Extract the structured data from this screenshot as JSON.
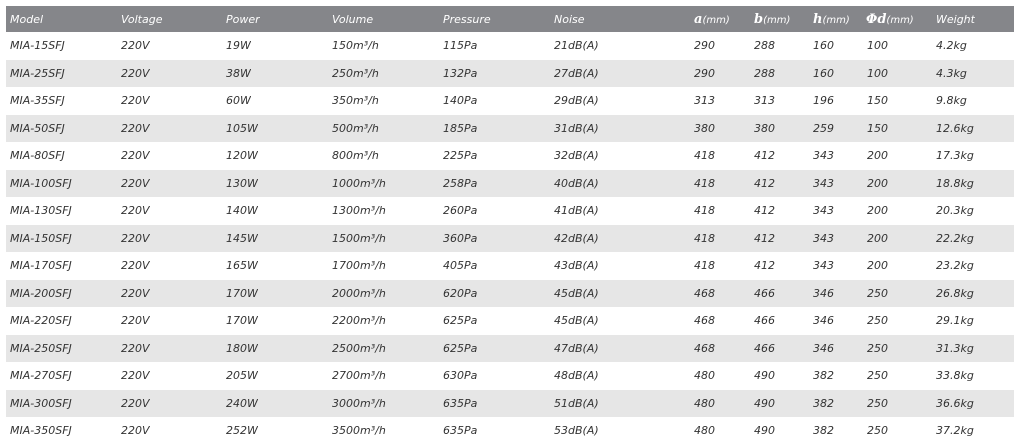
{
  "header": {
    "model": "Model",
    "voltage": "Voltage",
    "power": "Power",
    "volume": "Volume",
    "pressure": "Pressure",
    "noise": "Noise",
    "a_sym": "a",
    "a_unit": "(mm)",
    "b_sym": "b",
    "b_unit": "(mm)",
    "h_sym": "h",
    "h_unit": "(mm)",
    "d_sym": "Φd",
    "d_unit": "(mm)",
    "weight": "Weight"
  },
  "rows": [
    {
      "model": "MIA-15SFJ",
      "voltage": "220V",
      "power": "19W",
      "volume": "150m³/h",
      "pressure": "115Pa",
      "noise": "21dB(A)",
      "a": "290",
      "b": "288",
      "h": "160",
      "d": "100",
      "weight": "4.2kg"
    },
    {
      "model": "MIA-25SFJ",
      "voltage": "220V",
      "power": "38W",
      "volume": "250m³/h",
      "pressure": "132Pa",
      "noise": "27dB(A)",
      "a": "290",
      "b": "288",
      "h": "160",
      "d": "100",
      "weight": "4.3kg"
    },
    {
      "model": "MIA-35SFJ",
      "voltage": "220V",
      "power": "60W",
      "volume": "350m³/h",
      "pressure": "140Pa",
      "noise": "29dB(A)",
      "a": "313",
      "b": "313",
      "h": "196",
      "d": "150",
      "weight": "9.8kg"
    },
    {
      "model": "MIA-50SFJ",
      "voltage": "220V",
      "power": "105W",
      "volume": "500m³/h",
      "pressure": "185Pa",
      "noise": "31dB(A)",
      "a": "380",
      "b": "380",
      "h": "259",
      "d": "150",
      "weight": "12.6kg"
    },
    {
      "model": "MIA-80SFJ",
      "voltage": "220V",
      "power": "120W",
      "volume": "800m³/h",
      "pressure": "225Pa",
      "noise": "32dB(A)",
      "a": "418",
      "b": "412",
      "h": "343",
      "d": "200",
      "weight": "17.3kg"
    },
    {
      "model": "MIA-100SFJ",
      "voltage": "220V",
      "power": "130W",
      "volume": "1000m³/h",
      "pressure": "258Pa",
      "noise": "40dB(A)",
      "a": "418",
      "b": "412",
      "h": "343",
      "d": "200",
      "weight": "18.8kg"
    },
    {
      "model": "MIA-130SFJ",
      "voltage": "220V",
      "power": "140W",
      "volume": "1300m³/h",
      "pressure": "260Pa",
      "noise": "41dB(A)",
      "a": "418",
      "b": "412",
      "h": "343",
      "d": "200",
      "weight": "20.3kg"
    },
    {
      "model": "MIA-150SFJ",
      "voltage": "220V",
      "power": "145W",
      "volume": "1500m³/h",
      "pressure": "360Pa",
      "noise": "42dB(A)",
      "a": "418",
      "b": "412",
      "h": "343",
      "d": "200",
      "weight": "22.2kg"
    },
    {
      "model": "MIA-170SFJ",
      "voltage": "220V",
      "power": "165W",
      "volume": "1700m³/h",
      "pressure": "405Pa",
      "noise": "43dB(A)",
      "a": "418",
      "b": "412",
      "h": "343",
      "d": "200",
      "weight": "23.2kg"
    },
    {
      "model": "MIA-200SFJ",
      "voltage": "220V",
      "power": "170W",
      "volume": "2000m³/h",
      "pressure": "620Pa",
      "noise": "45dB(A)",
      "a": "468",
      "b": "466",
      "h": "346",
      "d": "250",
      "weight": "26.8kg"
    },
    {
      "model": "MIA-220SFJ",
      "voltage": "220V",
      "power": "170W",
      "volume": "2200m³/h",
      "pressure": "625Pa",
      "noise": "45dB(A)",
      "a": "468",
      "b": "466",
      "h": "346",
      "d": "250",
      "weight": "29.1kg"
    },
    {
      "model": "MIA-250SFJ",
      "voltage": "220V",
      "power": "180W",
      "volume": "2500m³/h",
      "pressure": "625Pa",
      "noise": "47dB(A)",
      "a": "468",
      "b": "466",
      "h": "346",
      "d": "250",
      "weight": "31.3kg"
    },
    {
      "model": "MIA-270SFJ",
      "voltage": "220V",
      "power": "205W",
      "volume": "2700m³/h",
      "pressure": "630Pa",
      "noise": "48dB(A)",
      "a": "480",
      "b": "490",
      "h": "382",
      "d": "250",
      "weight": "33.8kg"
    },
    {
      "model": "MIA-300SFJ",
      "voltage": "220V",
      "power": "240W",
      "volume": "3000m³/h",
      "pressure": "635Pa",
      "noise": "51dB(A)",
      "a": "480",
      "b": "490",
      "h": "382",
      "d": "250",
      "weight": "36.6kg"
    },
    {
      "model": "MIA-350SFJ",
      "voltage": "220V",
      "power": "252W",
      "volume": "3500m³/h",
      "pressure": "635Pa",
      "noise": "53dB(A)",
      "a": "480",
      "b": "490",
      "h": "382",
      "d": "250",
      "weight": "37.2kg"
    }
  ]
}
